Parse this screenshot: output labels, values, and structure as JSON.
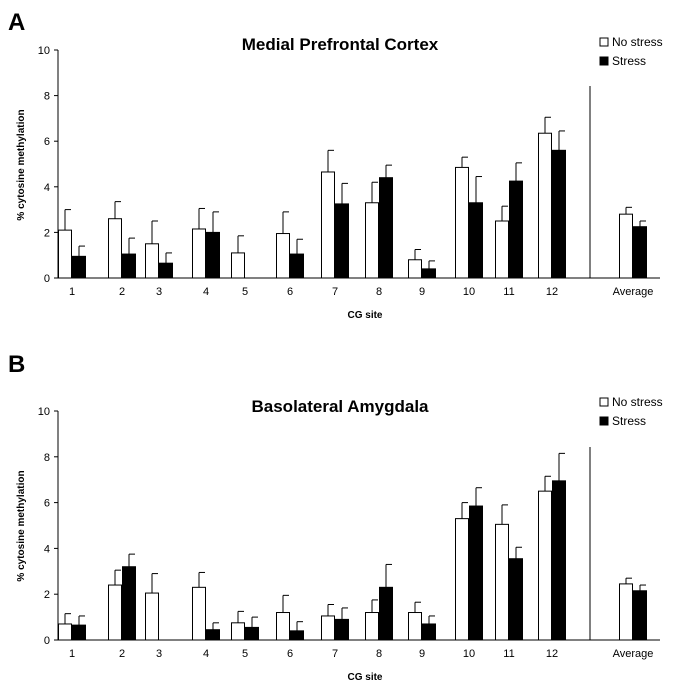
{
  "colors": {
    "no_stress": "#ffffff",
    "stress": "#000000",
    "outline": "#000000"
  },
  "chart_data": [
    {
      "type": "bar",
      "panel": "A",
      "title": "Medial Prefrontal Cortex",
      "xlabel": "CG site",
      "ylabel": "% cytosine methylation",
      "ylim": [
        0,
        10
      ],
      "yticks": [
        0,
        2,
        4,
        6,
        8,
        10
      ],
      "categories": [
        "1",
        "2",
        "3",
        "4",
        "5",
        "6",
        "7",
        "8",
        "9",
        "10",
        "11",
        "12",
        "Average"
      ],
      "legend_position": "top-right",
      "series": [
        {
          "name": "No stress",
          "values": [
            2.1,
            2.6,
            1.5,
            2.15,
            1.1,
            1.95,
            4.65,
            3.3,
            0.8,
            4.85,
            2.5,
            6.35,
            2.8
          ],
          "errors": [
            0.9,
            0.75,
            1.0,
            0.9,
            0.75,
            0.95,
            0.95,
            0.9,
            0.45,
            0.45,
            0.65,
            0.7,
            0.3
          ]
        },
        {
          "name": "Stress",
          "values": [
            0.95,
            1.05,
            0.65,
            2.0,
            0,
            1.05,
            3.25,
            4.4,
            0.4,
            3.3,
            4.25,
            5.6,
            2.25
          ],
          "errors": [
            0.45,
            0.7,
            0.45,
            0.9,
            0,
            0.65,
            0.9,
            0.55,
            0.35,
            1.15,
            0.8,
            0.85,
            0.25
          ]
        }
      ]
    },
    {
      "type": "bar",
      "panel": "B",
      "title": "Basolateral Amygdala",
      "xlabel": "CG site",
      "ylabel": "% cytosine methylation",
      "ylim": [
        0,
        10
      ],
      "yticks": [
        0,
        2,
        4,
        6,
        8,
        10
      ],
      "categories": [
        "1",
        "2",
        "3",
        "4",
        "5",
        "6",
        "7",
        "8",
        "9",
        "10",
        "11",
        "12",
        "Average"
      ],
      "legend_position": "top-right",
      "series": [
        {
          "name": "No stress",
          "values": [
            0.7,
            2.4,
            2.05,
            2.3,
            0.75,
            1.2,
            1.05,
            1.2,
            1.2,
            5.3,
            5.05,
            6.5,
            2.45
          ],
          "errors": [
            0.45,
            0.65,
            0.85,
            0.65,
            0.5,
            0.75,
            0.5,
            0.55,
            0.45,
            0.7,
            0.85,
            0.65,
            0.25
          ]
        },
        {
          "name": "Stress",
          "values": [
            0.65,
            3.2,
            0,
            0.45,
            0.55,
            0.4,
            0.9,
            2.3,
            0.7,
            5.85,
            3.55,
            6.95,
            2.15
          ],
          "errors": [
            0.4,
            0.55,
            0,
            0.3,
            0.45,
            0.4,
            0.5,
            1.0,
            0.35,
            0.8,
            0.5,
            1.2,
            0.25
          ]
        }
      ]
    }
  ]
}
